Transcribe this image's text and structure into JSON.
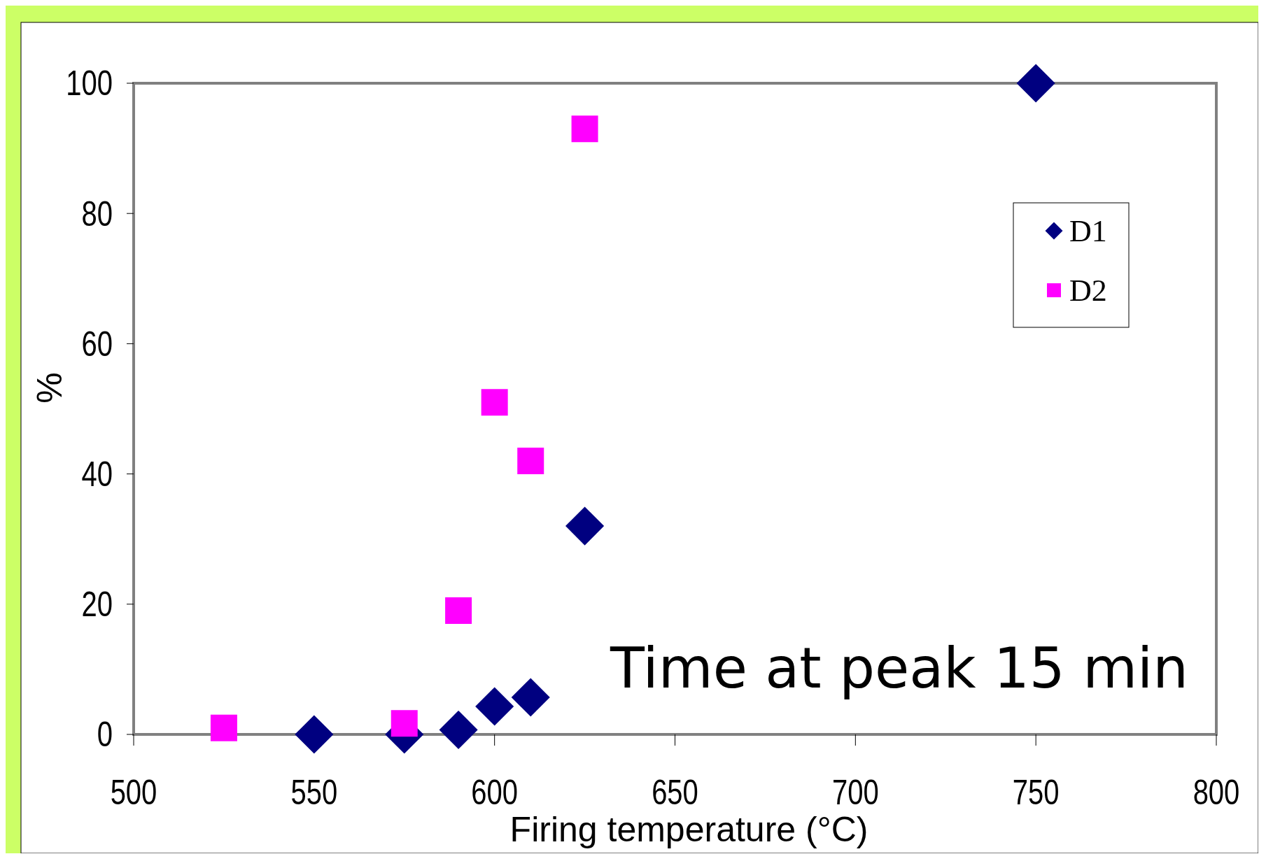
{
  "chart_data": {
    "type": "scatter",
    "xlabel": "Firing temperature (°C)",
    "ylabel": "%",
    "xlim": [
      500,
      800
    ],
    "xticks": [
      500,
      550,
      600,
      650,
      700,
      750,
      800
    ],
    "ylim": [
      0,
      100
    ],
    "yticks": [
      0,
      20,
      40,
      60,
      80,
      100
    ],
    "grid": false,
    "legend": "top right",
    "annotations": [
      "Time at peak 15 min"
    ],
    "series": [
      {
        "name": "D1",
        "color": "#000080",
        "marker": "diamond",
        "x": [
          550,
          575,
          590,
          600,
          610,
          625,
          750
        ],
        "values": [
          0,
          0,
          0.7,
          4.3,
          5.7,
          32,
          100
        ]
      },
      {
        "name": "D2",
        "color": "#ff00ff",
        "marker": "square",
        "x": [
          525,
          575,
          590,
          600,
          610,
          625
        ],
        "values": [
          1,
          1.7,
          19,
          51,
          42,
          93
        ]
      }
    ]
  }
}
